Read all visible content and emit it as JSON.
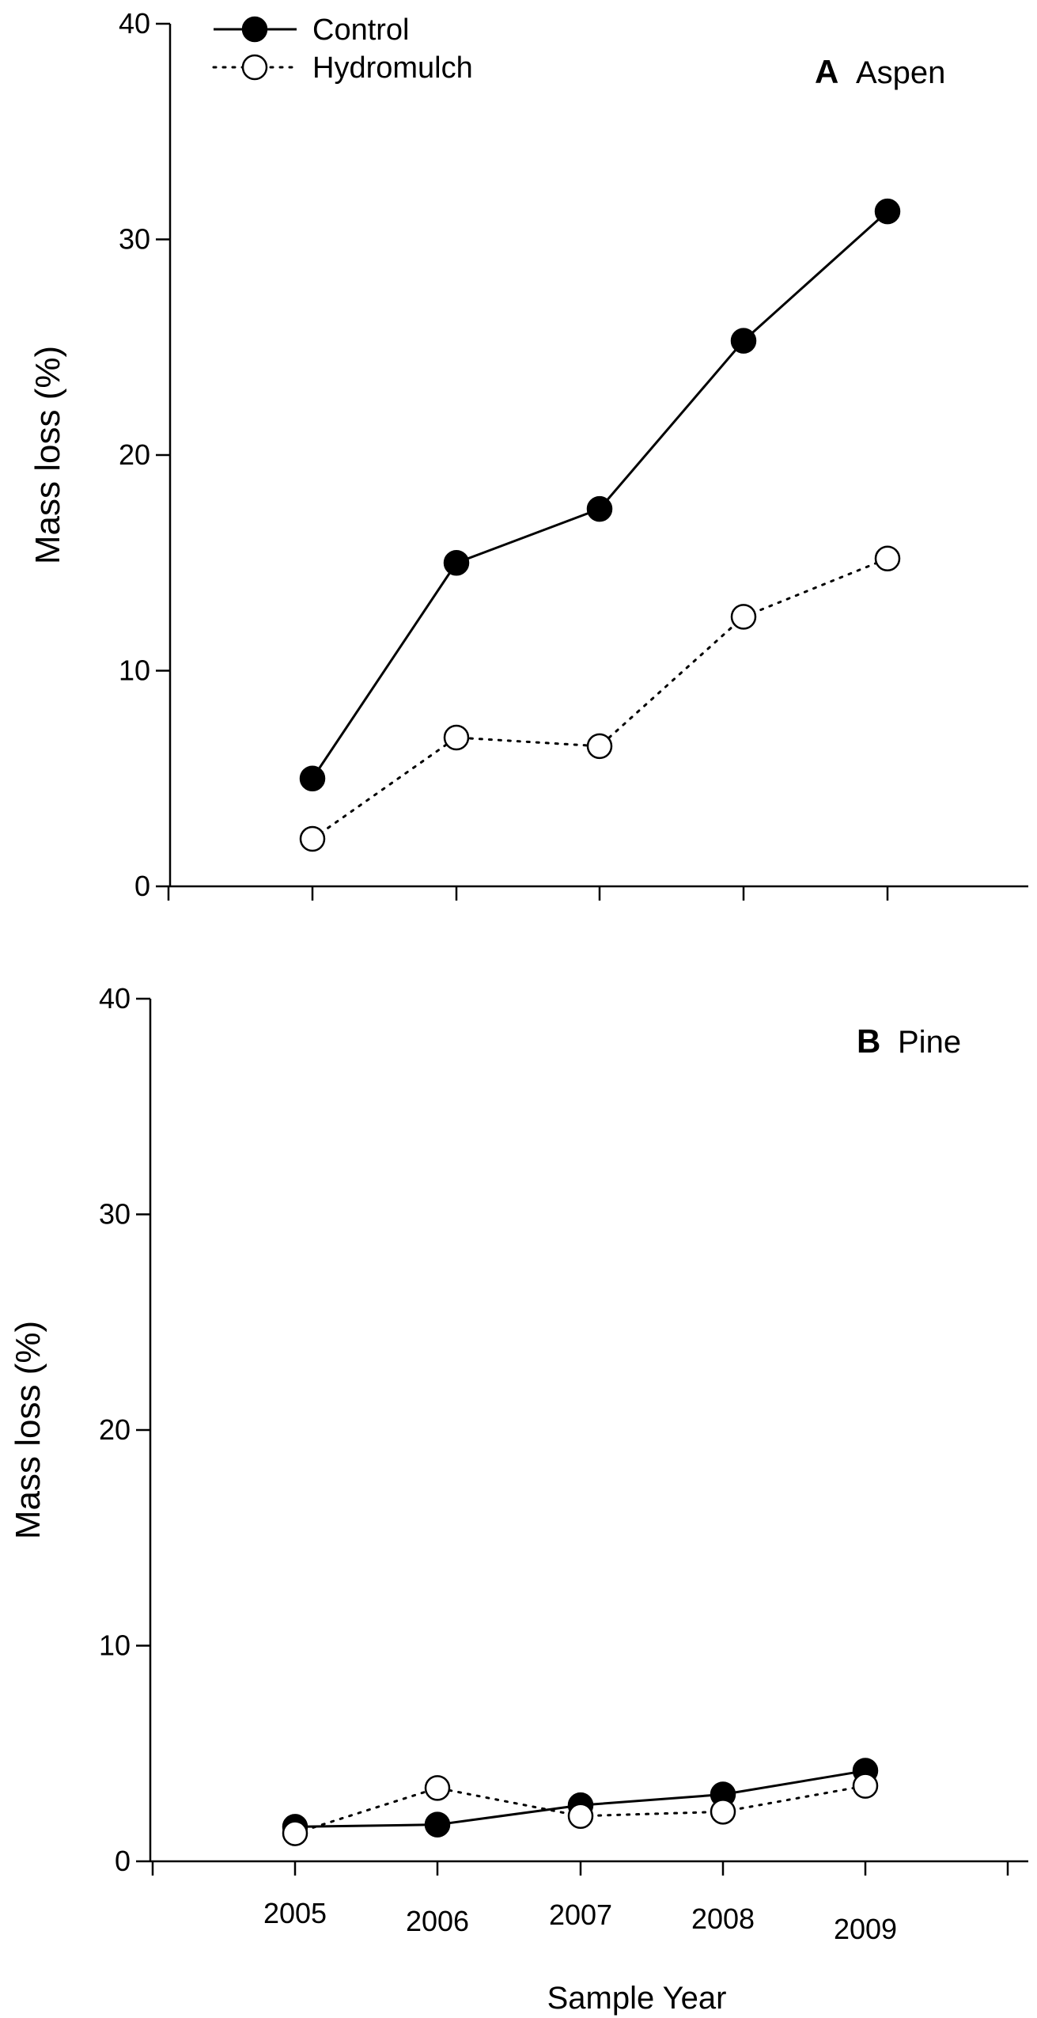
{
  "chart_data": [
    {
      "type": "line",
      "panel_letter": "A",
      "panel_name": "Aspen",
      "ylabel": "Mass loss (%)",
      "xlabel": "",
      "ylim": [
        0,
        40
      ],
      "yticks": [
        "0",
        "10",
        "20",
        "30",
        "40"
      ],
      "categories": [
        "2005",
        "2006",
        "2007",
        "2008",
        "2009"
      ],
      "show_x_tick_labels": false,
      "legend": {
        "placement": "top-left"
      },
      "grid": false,
      "series": [
        {
          "name": "Control",
          "style": "solid",
          "marker": "filled-circle",
          "values": [
            5.0,
            15.0,
            17.5,
            25.3,
            31.3
          ]
        },
        {
          "name": "Hydromulch",
          "style": "dotted",
          "marker": "open-circle",
          "values": [
            2.2,
            6.9,
            6.5,
            12.5,
            15.2
          ]
        }
      ]
    },
    {
      "type": "line",
      "panel_letter": "B",
      "panel_name": "Pine",
      "ylabel": "Mass loss (%)",
      "xlabel": "Sample Year",
      "ylim": [
        0,
        40
      ],
      "yticks": [
        "0",
        "10",
        "20",
        "30",
        "40"
      ],
      "categories": [
        "2005",
        "2006",
        "2007",
        "2008",
        "2009"
      ],
      "show_x_tick_labels": true,
      "grid": false,
      "series": [
        {
          "name": "Control",
          "style": "solid",
          "marker": "filled-circle",
          "values": [
            1.6,
            1.7,
            2.6,
            3.1,
            4.2
          ]
        },
        {
          "name": "Hydromulch",
          "style": "dotted",
          "marker": "open-circle",
          "values": [
            1.3,
            3.4,
            2.1,
            2.3,
            3.5
          ]
        }
      ]
    }
  ]
}
